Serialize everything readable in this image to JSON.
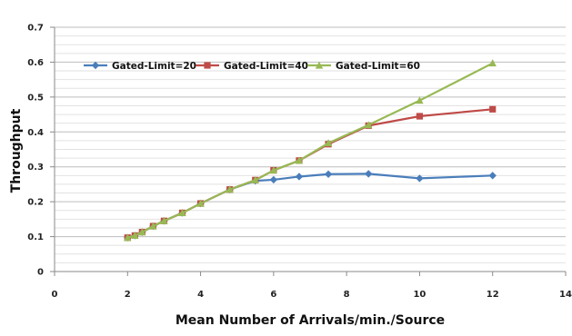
{
  "chart_data": {
    "type": "line",
    "title": "",
    "xlabel": "Mean Number of Arrivals/min./Source",
    "ylabel": "Throughput",
    "xlim": [
      0,
      14
    ],
    "ylim": [
      0,
      0.7
    ],
    "x_ticks": [
      0,
      2,
      4,
      6,
      8,
      10,
      12,
      14
    ],
    "y_ticks": [
      0,
      0.1,
      0.2,
      0.3,
      0.4,
      0.5,
      0.6,
      0.7
    ],
    "x_tick_labels": [
      "0",
      "2",
      "4",
      "6",
      "8",
      "10",
      "12",
      "14"
    ],
    "y_tick_labels": [
      "0",
      "0.1",
      "0.2",
      "0.3",
      "0.4",
      "0.5",
      "0.6",
      "0.7"
    ],
    "grid": "horizontal",
    "legend_position": "top-left",
    "series": [
      {
        "name": "Gated-Limit=20",
        "color": "#4a7ebb",
        "marker": "diamond",
        "x": [
          2,
          2.2,
          2.4,
          2.7,
          3,
          3.5,
          4,
          4.8,
          5.5,
          6,
          6.7,
          7.5,
          8.6,
          10,
          12
        ],
        "y": [
          0.097,
          0.103,
          0.113,
          0.13,
          0.145,
          0.168,
          0.195,
          0.235,
          0.26,
          0.263,
          0.272,
          0.279,
          0.28,
          0.267,
          0.275
        ]
      },
      {
        "name": "Gated-Limit=40",
        "color": "#be4b48",
        "marker": "square",
        "x": [
          2,
          2.2,
          2.4,
          2.7,
          3,
          3.5,
          4,
          4.8,
          5.5,
          6,
          6.7,
          7.5,
          8.6,
          10,
          12
        ],
        "y": [
          0.097,
          0.103,
          0.113,
          0.13,
          0.145,
          0.168,
          0.195,
          0.235,
          0.262,
          0.29,
          0.318,
          0.365,
          0.418,
          0.445,
          0.465
        ]
      },
      {
        "name": "Gated-Limit=60",
        "color": "#98b954",
        "marker": "triangle",
        "x": [
          2,
          2.2,
          2.4,
          2.7,
          3,
          3.5,
          4,
          4.8,
          5.5,
          6,
          6.7,
          7.5,
          8.6,
          10,
          12
        ],
        "y": [
          0.097,
          0.103,
          0.113,
          0.13,
          0.145,
          0.168,
          0.195,
          0.235,
          0.262,
          0.29,
          0.318,
          0.368,
          0.42,
          0.49,
          0.597
        ]
      }
    ]
  }
}
